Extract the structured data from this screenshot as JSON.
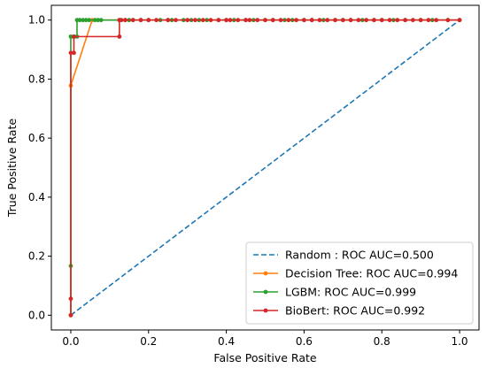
{
  "chart_data": {
    "type": "line",
    "xlabel": "False Positive Rate",
    "ylabel": "True Positive Rate",
    "xlim": [
      -0.05,
      1.05
    ],
    "ylim": [
      -0.05,
      1.05
    ],
    "xticks": [
      "0.0",
      "0.2",
      "0.4",
      "0.6",
      "0.8",
      "1.0"
    ],
    "yticks": [
      "0.0",
      "0.2",
      "0.4",
      "0.6",
      "0.8",
      "1.0"
    ],
    "xtick_values": [
      0,
      0.2,
      0.4,
      0.6,
      0.8,
      1.0
    ],
    "ytick_values": [
      0,
      0.2,
      0.4,
      0.6,
      0.8,
      1.0
    ],
    "grid": false,
    "legend_position": "bottom-right",
    "series": [
      {
        "name": "Random : ROC AUC=0.500",
        "color": "#1f77b4",
        "style": "dashed",
        "markers": false,
        "x": [
          0,
          1
        ],
        "y": [
          0,
          1
        ]
      },
      {
        "name": "Decision Tree: ROC AUC=0.994",
        "color": "#ff7f0e",
        "style": "solid",
        "markers": true,
        "x": [
          0,
          0,
          0.055,
          1
        ],
        "y": [
          0,
          0.778,
          1.0,
          1.0
        ]
      },
      {
        "name": "LGBM: ROC AUC=0.999",
        "color": "#2ca02c",
        "style": "solid",
        "markers": true,
        "x": [
          0,
          0,
          0,
          0.008,
          0.008,
          0.016,
          0.016,
          0.023,
          0.031,
          0.039,
          0.047,
          0.062,
          0.07,
          0.078,
          0.125,
          0.14,
          0.15,
          0.16,
          0.18,
          0.2,
          0.23,
          0.25,
          0.26,
          0.29,
          0.31,
          0.33,
          0.35,
          0.38,
          0.4,
          0.42,
          0.45,
          0.47,
          0.5,
          0.52,
          0.55,
          0.57,
          0.6,
          0.62,
          0.65,
          0.68,
          0.7,
          0.72,
          0.75,
          0.78,
          0.8,
          0.83,
          0.86,
          0.9,
          0.93,
          0.97,
          1.0
        ],
        "y": [
          0,
          0.167,
          0.944,
          0.944,
          0.944,
          0.944,
          1.0,
          1.0,
          1.0,
          1.0,
          1.0,
          1.0,
          1.0,
          1.0,
          1.0,
          1.0,
          1.0,
          1.0,
          1.0,
          1.0,
          1.0,
          1.0,
          1.0,
          1.0,
          1.0,
          1.0,
          1.0,
          1.0,
          1.0,
          1.0,
          1.0,
          1.0,
          1.0,
          1.0,
          1.0,
          1.0,
          1.0,
          1.0,
          1.0,
          1.0,
          1.0,
          1.0,
          1.0,
          1.0,
          1.0,
          1.0,
          1.0,
          1.0,
          1.0,
          1.0,
          1.0
        ]
      },
      {
        "name": "BioBert: ROC AUC=0.992",
        "color": "#d62728",
        "style": "solid",
        "markers": true,
        "x": [
          0,
          0,
          0,
          0.008,
          0.008,
          0.125,
          0.125,
          0.13,
          0.14,
          0.16,
          0.18,
          0.2,
          0.22,
          0.25,
          0.27,
          0.3,
          0.32,
          0.34,
          0.36,
          0.38,
          0.4,
          0.41,
          0.43,
          0.45,
          0.46,
          0.48,
          0.5,
          0.52,
          0.54,
          0.56,
          0.58,
          0.6,
          0.62,
          0.64,
          0.66,
          0.68,
          0.7,
          0.72,
          0.74,
          0.76,
          0.78,
          0.8,
          0.82,
          0.84,
          0.86,
          0.88,
          0.9,
          0.92,
          0.94,
          0.97,
          1.0
        ],
        "y": [
          0,
          0.056,
          0.889,
          0.889,
          0.944,
          0.944,
          1.0,
          1.0,
          1.0,
          1.0,
          1.0,
          1.0,
          1.0,
          1.0,
          1.0,
          1.0,
          1.0,
          1.0,
          1.0,
          1.0,
          1.0,
          1.0,
          1.0,
          1.0,
          1.0,
          1.0,
          1.0,
          1.0,
          1.0,
          1.0,
          1.0,
          1.0,
          1.0,
          1.0,
          1.0,
          1.0,
          1.0,
          1.0,
          1.0,
          1.0,
          1.0,
          1.0,
          1.0,
          1.0,
          1.0,
          1.0,
          1.0,
          1.0,
          1.0,
          1.0,
          1.0
        ]
      }
    ]
  }
}
